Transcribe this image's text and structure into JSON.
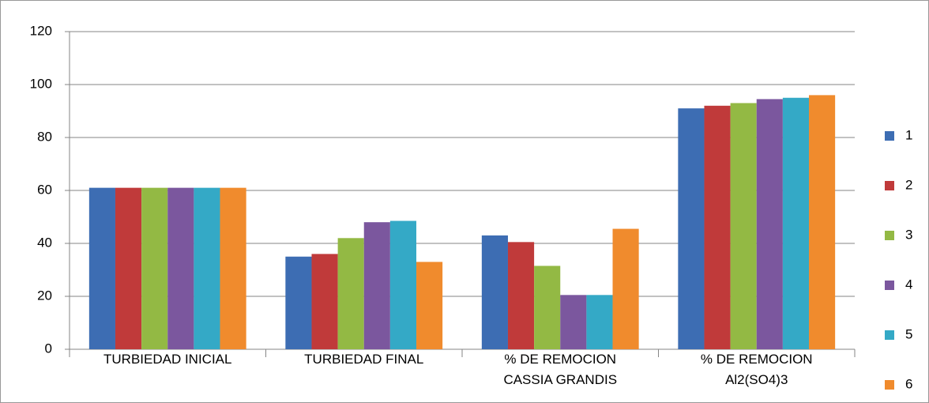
{
  "chart_data": {
    "type": "bar",
    "categories": [
      "TURBIEDAD INICIAL",
      "TURBIEDAD FINAL",
      "% DE REMOCION\nCASSIA GRANDIS",
      "% DE REMOCION\nAl2(SO4)3"
    ],
    "series": [
      {
        "name": "1",
        "color": "#3d6db3",
        "values": [
          61,
          35,
          43,
          91
        ]
      },
      {
        "name": "2",
        "color": "#c03a3a",
        "values": [
          61,
          36,
          40.5,
          92
        ]
      },
      {
        "name": "3",
        "color": "#93b944",
        "values": [
          61,
          42,
          31.5,
          93
        ]
      },
      {
        "name": "4",
        "color": "#7b579e",
        "values": [
          61,
          48,
          20.5,
          94.5
        ]
      },
      {
        "name": "5",
        "color": "#34a9c6",
        "values": [
          61,
          48.5,
          20.5,
          95
        ]
      },
      {
        "name": "6",
        "color": "#f08b2d",
        "values": [
          61,
          33,
          45.5,
          96
        ]
      }
    ],
    "ylim": [
      0,
      120
    ],
    "yticks": [
      0,
      20,
      40,
      60,
      80,
      100,
      120
    ],
    "grid": true,
    "legend": "right"
  }
}
